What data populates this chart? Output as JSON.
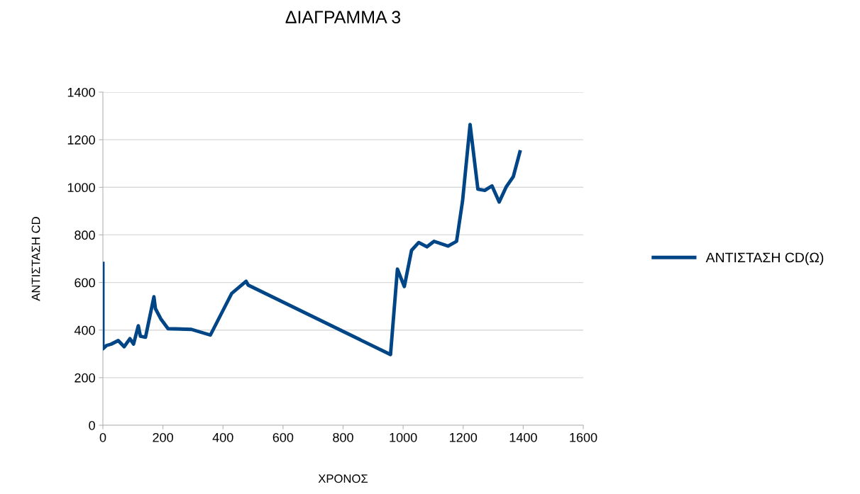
{
  "chart_data": {
    "type": "line",
    "title": "ΔΙΑΓΡΑΜΜΑ 3",
    "xlabel": "ΧΡΟΝΟΣ",
    "ylabel": "ΑΝΤΙΣΤΑΣΗ CD",
    "series": [
      {
        "name": "ΑΝΤΙΣΤΑΣΗ CD(Ω)",
        "color": "#004586",
        "x": [
          0,
          0,
          12,
          28,
          51,
          71,
          90,
          102,
          118,
          125,
          142,
          170,
          175,
          193,
          217,
          295,
          358,
          429,
          477,
          484,
          958,
          981,
          1004,
          1028,
          1052,
          1079,
          1103,
          1150,
          1178,
          1198,
          1223,
          1249,
          1272,
          1296,
          1320,
          1343,
          1367,
          1389
        ],
        "values": [
          680,
          321,
          335,
          341,
          356,
          330,
          364,
          341,
          418,
          374,
          370,
          540,
          490,
          447,
          406,
          403,
          379,
          554,
          605,
          589,
          297,
          656,
          583,
          735,
          768,
          750,
          773,
          753,
          773,
          943,
          1264,
          992,
          987,
          1006,
          938,
          1001,
          1045,
          1149
        ]
      }
    ],
    "xlim": [
      0,
      1600
    ],
    "xticks": [
      0,
      200,
      400,
      600,
      800,
      1000,
      1200,
      1400,
      1600
    ],
    "ylim": [
      0,
      1400
    ],
    "yticks": [
      0,
      200,
      400,
      600,
      800,
      1000,
      1200,
      1400
    ],
    "grid": "y",
    "legend": "right",
    "marker": "none",
    "line_style": "solid"
  }
}
